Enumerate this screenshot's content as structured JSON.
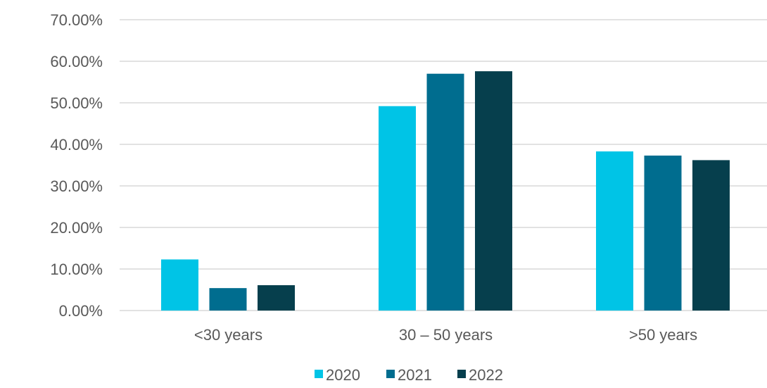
{
  "chart_data": {
    "type": "bar",
    "categories": [
      "<30 years",
      "30 – 50 years",
      ">50 years"
    ],
    "series": [
      {
        "name": "2020",
        "color": "#00C4E6",
        "values": [
          12.3,
          49.2,
          38.3
        ]
      },
      {
        "name": "2021",
        "color": "#006D8F",
        "values": [
          5.4,
          57.0,
          37.3
        ]
      },
      {
        "name": "2022",
        "color": "#063F4D",
        "values": [
          6.1,
          57.6,
          36.2
        ]
      }
    ],
    "ylim": [
      0,
      70
    ],
    "yticks": [
      0,
      10,
      20,
      30,
      40,
      50,
      60,
      70
    ],
    "ytick_labels": [
      "0.00%",
      "10.00%",
      "20.00%",
      "30.00%",
      "40.00%",
      "50.00%",
      "60.00%",
      "70.00%"
    ],
    "title": "",
    "xlabel": "",
    "ylabel": "",
    "grid": true,
    "legend_position": "bottom"
  }
}
